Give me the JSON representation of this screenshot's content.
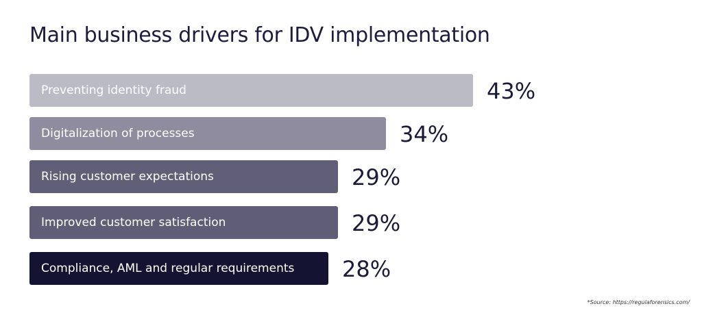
{
  "chart_data": {
    "type": "bar",
    "orientation": "horizontal",
    "title": "Main business drivers for IDV implementation",
    "categories": [
      "Preventing identity fraud",
      "Digitalization of processes",
      "Rising customer expectations",
      "Improved customer satisfaction",
      "Compliance, AML and regular requirements"
    ],
    "values": [
      43,
      34,
      29,
      29,
      28
    ],
    "value_labels": [
      "43%",
      "34%",
      "29%",
      "29%",
      "28%"
    ],
    "colors": [
      "#bbbbc6",
      "#8e8c9e",
      "#605f77",
      "#5f5e76",
      "#141331"
    ],
    "grid": false,
    "unit": "%"
  },
  "source": "*Source: https://regulaforensics.com/"
}
